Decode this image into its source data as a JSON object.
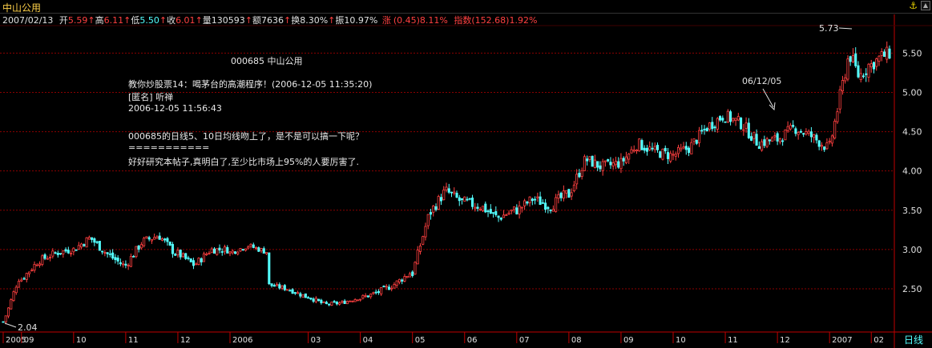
{
  "window": {
    "title": "中山公用",
    "lock_icon": "anchor-icon"
  },
  "quote": {
    "date": "2007/02/13",
    "open_label": "开",
    "open_value": "5.59",
    "high_label": "高",
    "high_value": "6.11",
    "low_label": "低",
    "low_value": "5.50",
    "close_label": "收",
    "close_value": "6.01",
    "volume_label": "量",
    "volume_value": "130593",
    "amount_label": "额",
    "amount_value": "7636",
    "turnover_label": "换",
    "turnover_value": "8.30%",
    "amplitude_label": "振",
    "amplitude_value": "10.97%",
    "change_label": "涨",
    "change_value": "(0.45)8.11%",
    "index_label": "指数",
    "index_value": "(152.68)1.92%"
  },
  "post": {
    "code_line": "000685 中山公用",
    "title_line": "教你炒股票14：喝茅台的高潮程序！(2006-12-05 11:35:20)",
    "author_line": "[匿名] 听禅",
    "time_line": "2006-12-05 11:56:43",
    "question_line": "000685的日线5、10日均线吻上了，是不是可以搞一下呢？",
    "separator_line": "===========",
    "answer_line": "好好研究本帖子,真明白了,至少比市场上95%的人要厉害了."
  },
  "annotations": {
    "high_label": "5.73",
    "low_label": "2.04",
    "date_label": "06/12/05"
  },
  "colors": {
    "up": "#ff4040",
    "down": "#54ffff",
    "grid": "#8b0000",
    "axis": "#c00000",
    "text": "#e0e0e0"
  },
  "chart_data": {
    "type": "candlestick",
    "period_label": "日线",
    "ylim": [
      1.95,
      5.85
    ],
    "y_ticks": [
      "2.50",
      "3.00",
      "3.50",
      "4.00",
      "4.50",
      "5.00",
      "5.50"
    ],
    "x_ticks": [
      "2005",
      "09",
      "10",
      "11",
      "12",
      "2006",
      "03",
      "04",
      "05",
      "06",
      "07",
      "08",
      "09",
      "10",
      "11",
      "12",
      "2007",
      "02"
    ],
    "segments": [
      {
        "n": 7,
        "points": [
          [
            2.08,
            0.06
          ],
          [
            2.2,
            0.06
          ],
          [
            2.35,
            0.06
          ],
          [
            2.5,
            0.05
          ],
          [
            2.62,
            0.06
          ]
        ]
      },
      {
        "n": 20,
        "points": [
          [
            2.62,
            0.08
          ],
          [
            2.85,
            0.08
          ],
          [
            2.95,
            0.08
          ],
          [
            3.0,
            0.08
          ]
        ]
      },
      {
        "n": 20,
        "points": [
          [
            3.0,
            0.09
          ],
          [
            3.15,
            0.09
          ],
          [
            2.95,
            0.09
          ],
          [
            2.8,
            0.09
          ]
        ]
      },
      {
        "n": 20,
        "points": [
          [
            2.8,
            0.09
          ],
          [
            3.1,
            0.09
          ],
          [
            3.18,
            0.09
          ],
          [
            2.95,
            0.09
          ]
        ]
      },
      {
        "n": 20,
        "points": [
          [
            2.95,
            0.08
          ],
          [
            2.8,
            0.08
          ],
          [
            3.0,
            0.08
          ],
          [
            3.0,
            0.07
          ]
        ]
      },
      {
        "n": 15,
        "points": [
          [
            2.96,
            0.06
          ],
          [
            3.05,
            0.06
          ],
          [
            2.97,
            0.05
          ]
        ]
      },
      {
        "n": 15,
        "points": [
          [
            2.55,
            0.05
          ],
          [
            2.5,
            0.05
          ],
          [
            2.4,
            0.05
          ]
        ]
      },
      {
        "n": 20,
        "points": [
          [
            2.4,
            0.05
          ],
          [
            2.3,
            0.04
          ],
          [
            2.32,
            0.04
          ],
          [
            2.38,
            0.05
          ]
        ]
      },
      {
        "n": 20,
        "points": [
          [
            2.38,
            0.06
          ],
          [
            2.45,
            0.07
          ],
          [
            2.55,
            0.07
          ],
          [
            2.7,
            0.08
          ]
        ]
      },
      {
        "n": 20,
        "points": [
          [
            2.7,
            0.1
          ],
          [
            3.45,
            0.12
          ],
          [
            3.75,
            0.12
          ],
          [
            3.6,
            0.12
          ]
        ]
      },
      {
        "n": 20,
        "points": [
          [
            3.6,
            0.12
          ],
          [
            3.55,
            0.12
          ],
          [
            3.4,
            0.11
          ],
          [
            3.5,
            0.11
          ]
        ]
      },
      {
        "n": 20,
        "points": [
          [
            3.5,
            0.11
          ],
          [
            3.65,
            0.11
          ],
          [
            3.55,
            0.12
          ],
          [
            3.7,
            0.12
          ]
        ]
      },
      {
        "n": 20,
        "points": [
          [
            3.7,
            0.12
          ],
          [
            4.15,
            0.12
          ],
          [
            4.05,
            0.12
          ],
          [
            4.1,
            0.12
          ]
        ]
      },
      {
        "n": 20,
        "points": [
          [
            4.1,
            0.12
          ],
          [
            4.35,
            0.12
          ],
          [
            4.25,
            0.12
          ],
          [
            4.2,
            0.12
          ]
        ]
      },
      {
        "n": 20,
        "points": [
          [
            4.2,
            0.12
          ],
          [
            4.3,
            0.12
          ],
          [
            4.55,
            0.13
          ],
          [
            4.7,
            0.13
          ]
        ]
      },
      {
        "n": 20,
        "points": [
          [
            4.7,
            0.13
          ],
          [
            4.6,
            0.13
          ],
          [
            4.35,
            0.12
          ],
          [
            4.4,
            0.12
          ]
        ]
      },
      {
        "n": 20,
        "points": [
          [
            4.4,
            0.12
          ],
          [
            4.55,
            0.12
          ],
          [
            4.45,
            0.12
          ],
          [
            4.3,
            0.12
          ]
        ]
      },
      {
        "n": 16,
        "points": [
          [
            4.3,
            0.14
          ],
          [
            4.9,
            0.16
          ],
          [
            5.5,
            0.16
          ],
          [
            5.2,
            0.17
          ],
          [
            5.35,
            0.16
          ]
        ]
      },
      {
        "n": 8,
        "points": [
          [
            5.35,
            0.15
          ],
          [
            5.45,
            0.15
          ],
          [
            5.5,
            0.14
          ]
        ]
      }
    ]
  }
}
